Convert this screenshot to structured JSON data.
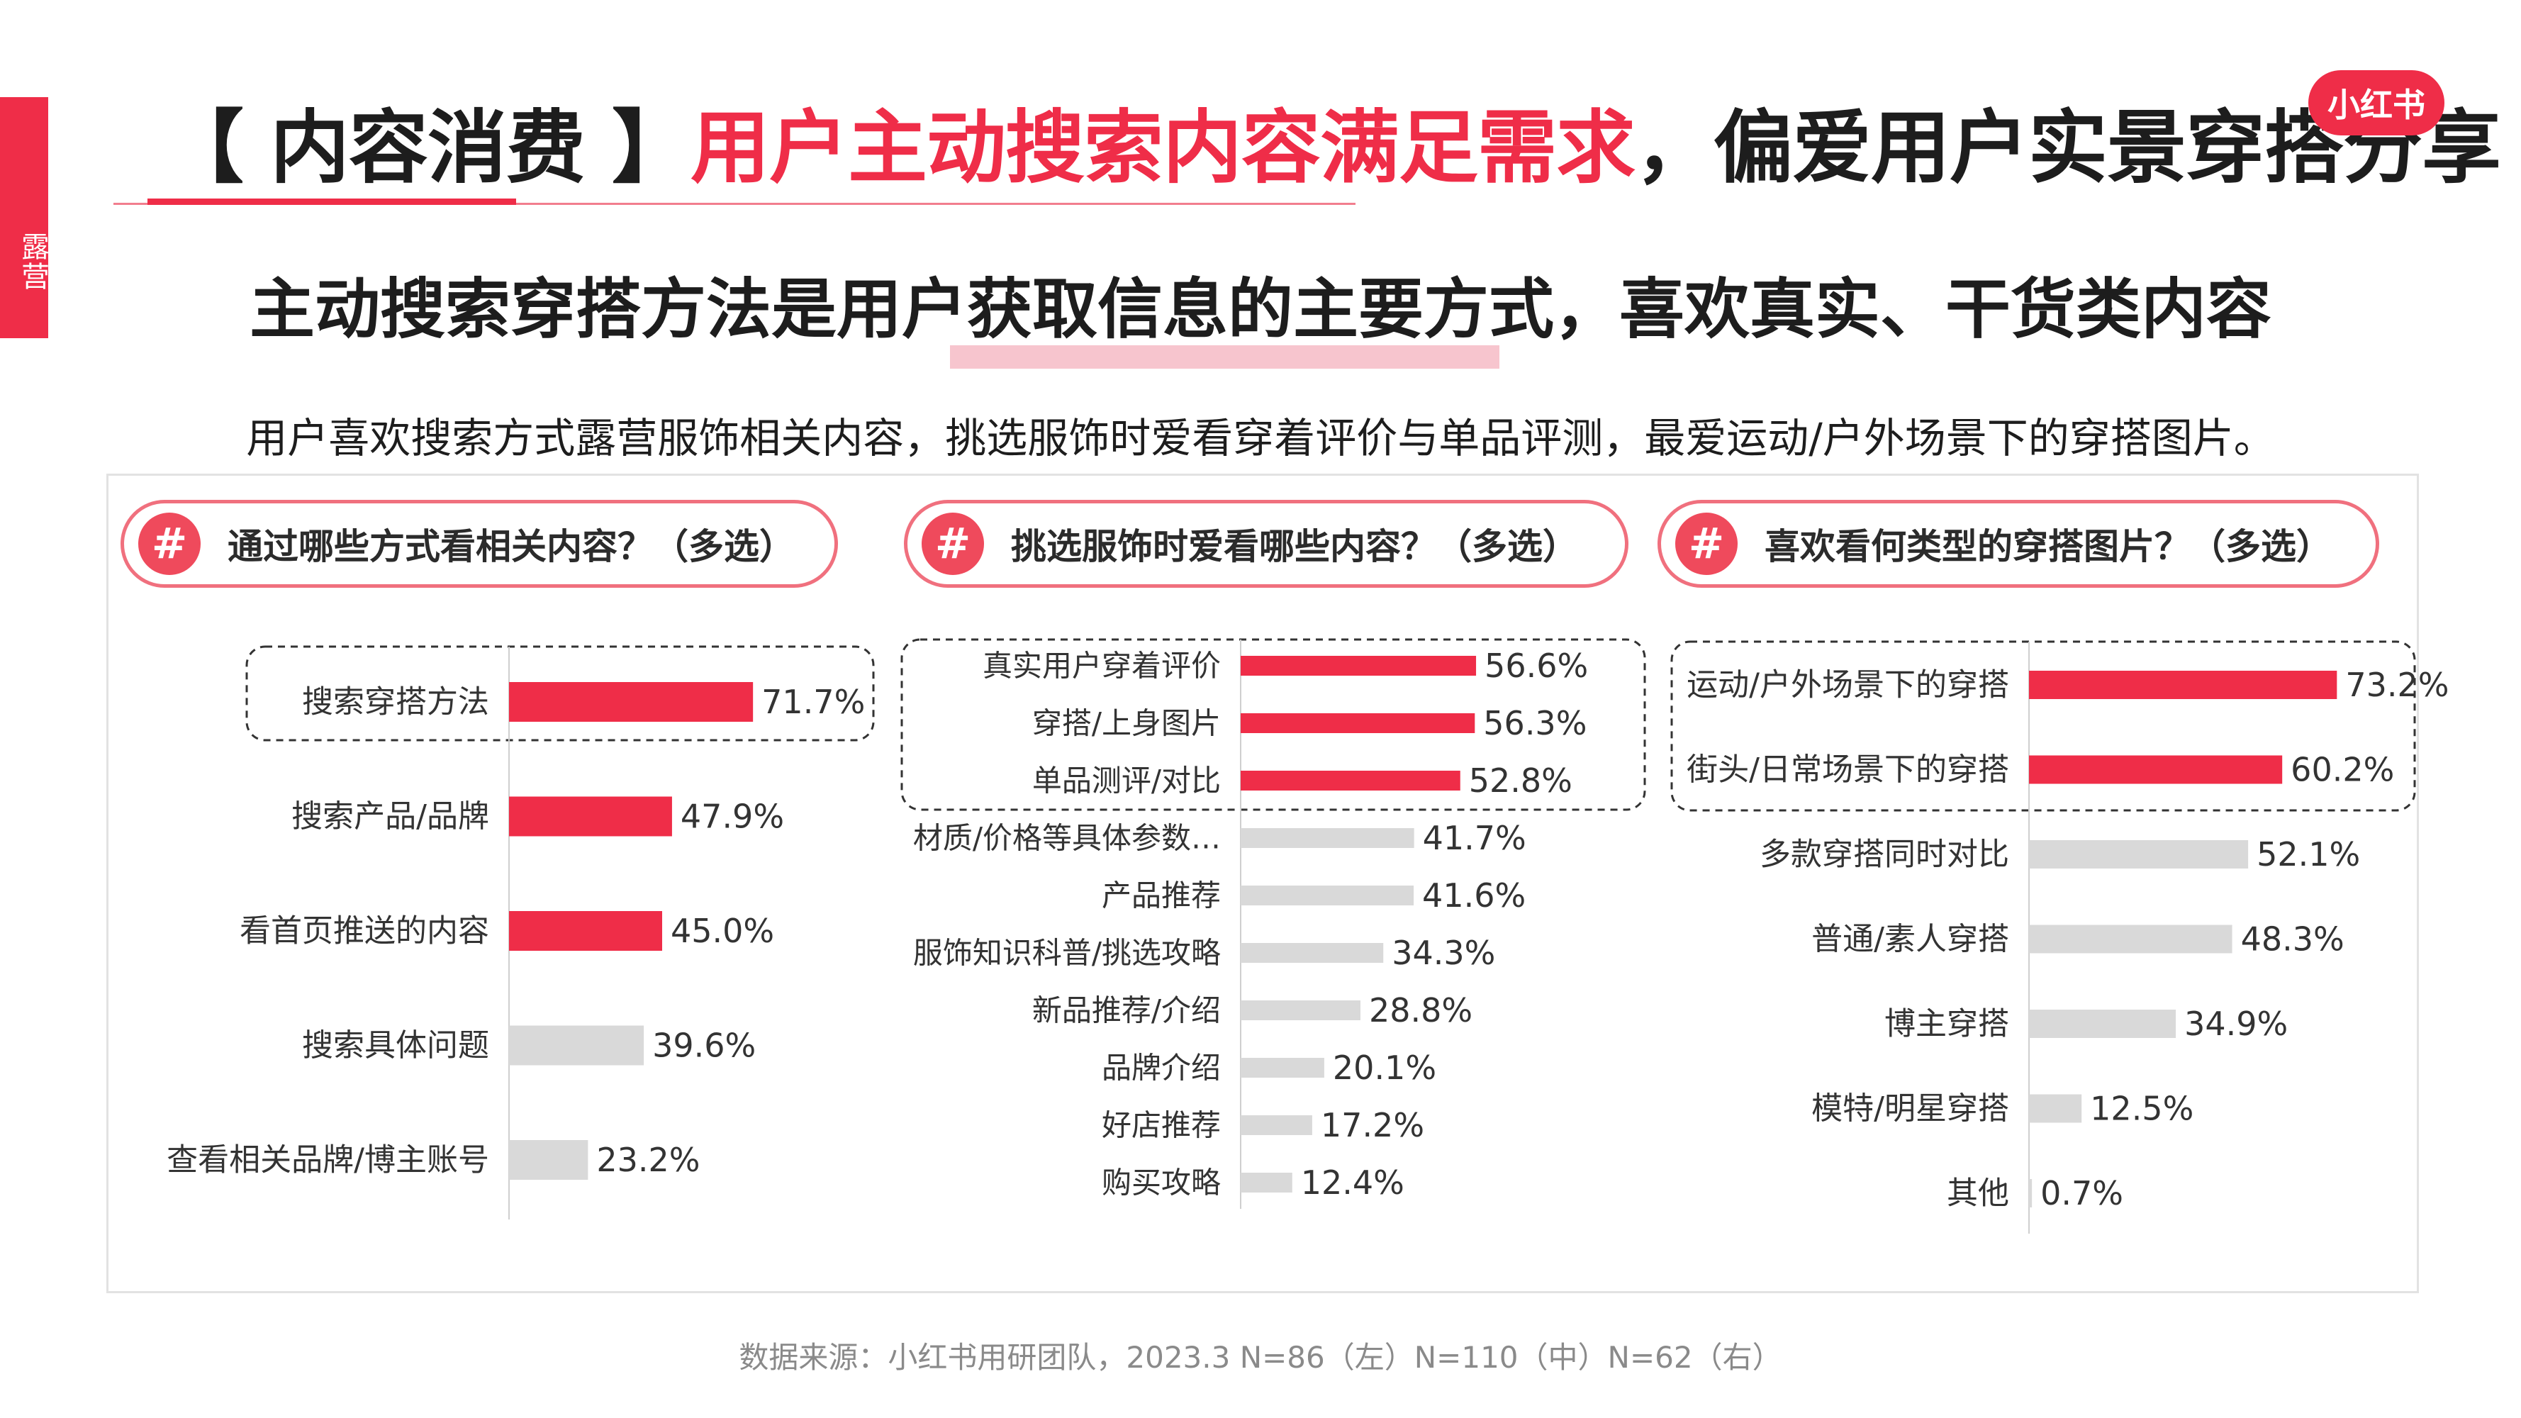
{
  "side_tab": "露营",
  "title": {
    "prefix": "【 内容消费 】",
    "accent": "用户主动搜索内容满足需求",
    "suffix": "，偏爱用户实景穿搭分享"
  },
  "logo": "小红书",
  "subtitle": "主动搜索穿搭方法是用户获取信息的主要方式，喜欢真实、干货类内容",
  "summary": "用户喜欢搜索方式露营服饰相关内容，挑选服饰时爱看穿着评价与单品评测，最爱运动/户外场景下的穿搭图片。",
  "hash_icon": "#",
  "colors": {
    "accent": "#ef2d48",
    "grey_bar": "#d9d9d9",
    "pill_border": "#f0707e"
  },
  "chart_data": [
    {
      "type": "bar",
      "orientation": "horizontal",
      "title": "通过哪些方式看相关内容？（多选）",
      "categories": [
        "搜索穿搭方法",
        "搜索产品/品牌",
        "看首页推送的内容",
        "搜索具体问题",
        "查看相关品牌/博主账号"
      ],
      "values": [
        71.7,
        47.9,
        45.0,
        39.6,
        23.2
      ],
      "value_labels": [
        "71.7%",
        "47.9%",
        "45.0%",
        "39.6%",
        "23.2%"
      ],
      "highlighted": [
        true,
        true,
        true,
        false,
        false
      ],
      "boxed": 1
    },
    {
      "type": "bar",
      "orientation": "horizontal",
      "title": "挑选服饰时爱看哪些内容？（多选）",
      "categories": [
        "真实用户穿着评价",
        "穿搭/上身图片",
        "单品测评/对比",
        "材质/价格等具体参数…",
        "产品推荐",
        "服饰知识科普/挑选攻略",
        "新品推荐/介绍",
        "品牌介绍",
        "好店推荐",
        "购买攻略"
      ],
      "values": [
        56.6,
        56.3,
        52.8,
        41.7,
        41.6,
        34.3,
        28.8,
        20.1,
        17.2,
        12.4
      ],
      "value_labels": [
        "56.6%",
        "56.3%",
        "52.8%",
        "41.7%",
        "41.6%",
        "34.3%",
        "28.8%",
        "20.1%",
        "17.2%",
        "12.4%"
      ],
      "highlighted": [
        true,
        true,
        true,
        false,
        false,
        false,
        false,
        false,
        false,
        false
      ],
      "boxed": 3
    },
    {
      "type": "bar",
      "orientation": "horizontal",
      "title": "喜欢看何类型的穿搭图片？（多选）",
      "categories": [
        "运动/户外场景下的穿搭",
        "街头/日常场景下的穿搭",
        "多款穿搭同时对比",
        "普通/素人穿搭",
        "博主穿搭",
        "模特/明星穿搭",
        "其他"
      ],
      "values": [
        73.2,
        60.2,
        52.1,
        48.3,
        34.9,
        12.5,
        0.7
      ],
      "value_labels": [
        "73.2%",
        "60.2%",
        "52.1%",
        "48.3%",
        "34.9%",
        "12.5%",
        "0.7%"
      ],
      "highlighted": [
        true,
        true,
        false,
        false,
        false,
        false,
        false
      ],
      "boxed": 2
    }
  ],
  "source": "数据来源：小红书用研团队，2023.3 N=86（左）N=110（中）N=62（右）"
}
